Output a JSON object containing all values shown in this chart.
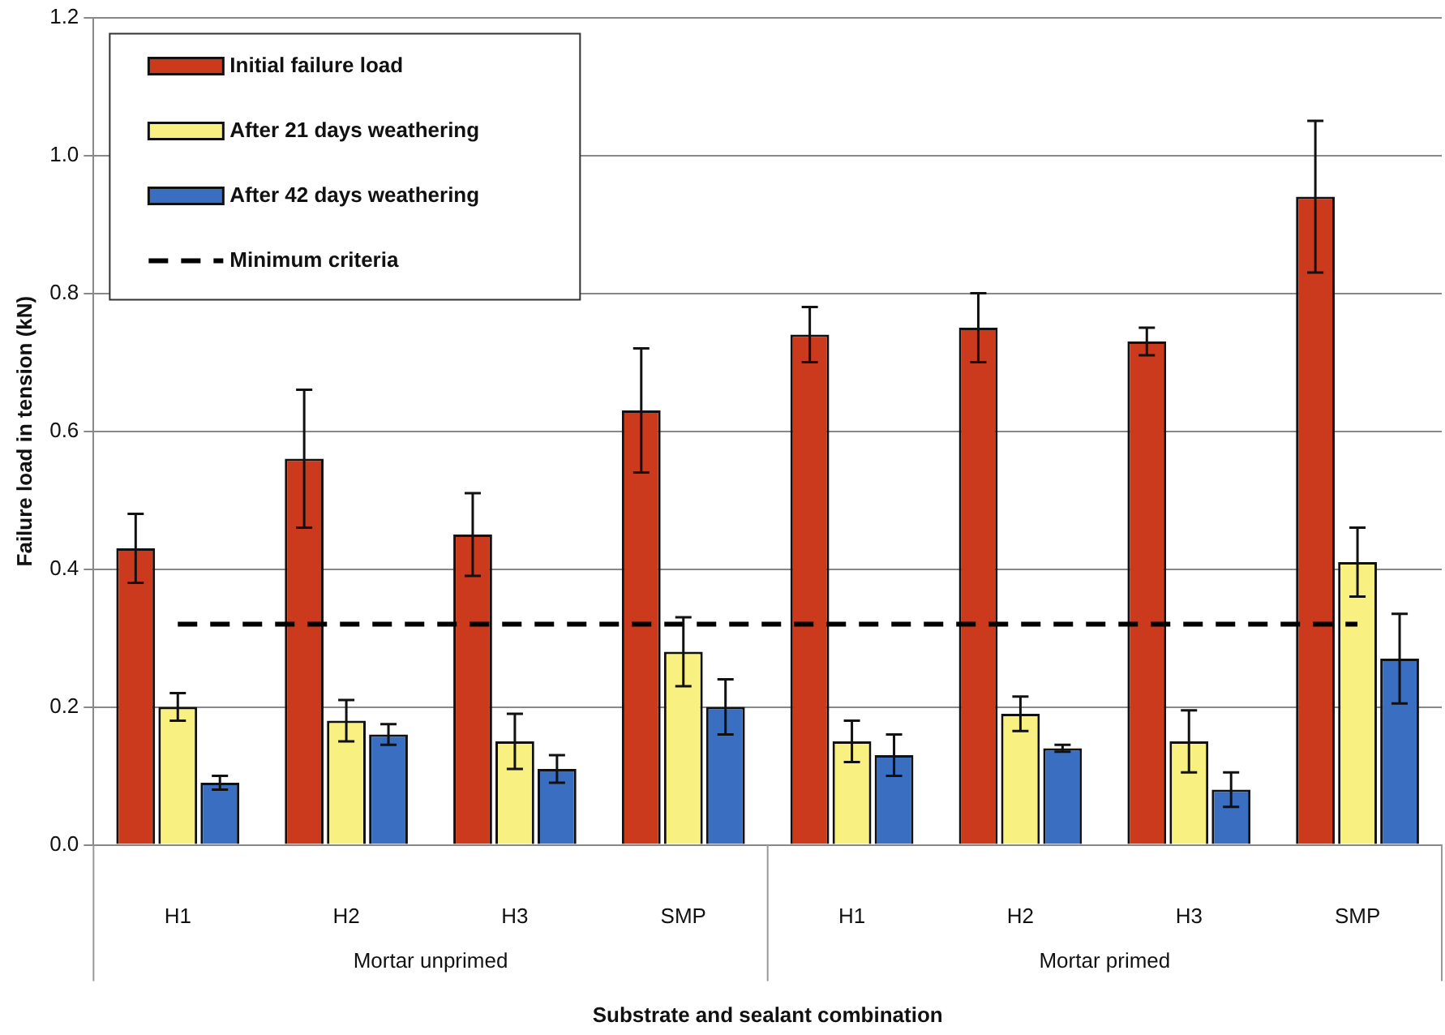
{
  "chart_data": {
    "type": "bar",
    "xlabel": "Substrate and sealant combination",
    "ylabel": "Failure load in tension (kN)",
    "categories": [
      "H1",
      "H2",
      "H3",
      "SMP",
      "H1",
      "H2",
      "H3",
      "SMP"
    ],
    "annotations": [
      "Mortar unprimed",
      "Mortar primed"
    ],
    "series": [
      {
        "name": "Initial failure load",
        "color": "#cc3a1e",
        "values": [
          0.43,
          0.56,
          0.45,
          0.63,
          0.74,
          0.75,
          0.73,
          0.94
        ],
        "errors": [
          0.05,
          0.1,
          0.06,
          0.09,
          0.04,
          0.05,
          0.02,
          0.11
        ]
      },
      {
        "name": "After 21 days weathering",
        "color": "#f8f080",
        "values": [
          0.2,
          0.18,
          0.15,
          0.28,
          0.15,
          0.19,
          0.15,
          0.41
        ],
        "errors": [
          0.02,
          0.03,
          0.04,
          0.05,
          0.03,
          0.025,
          0.045,
          0.05
        ]
      },
      {
        "name": "After 42 days weathering",
        "color": "#3a6ec0",
        "values": [
          0.09,
          0.16,
          0.11,
          0.2,
          0.13,
          0.14,
          0.08,
          0.27
        ],
        "errors": [
          0.01,
          0.015,
          0.02,
          0.04,
          0.03,
          0.005,
          0.025,
          0.065
        ]
      },
      {
        "name": "Minimum criteria",
        "type": "line",
        "color": "#000000",
        "line_style": "dashed",
        "marker": "none",
        "values": [
          0.32,
          0.32,
          0.32,
          0.32,
          0.32,
          0.32,
          0.32,
          0.32
        ]
      }
    ],
    "ylim": [
      0,
      1.2
    ],
    "yticks": [
      {
        "value": 0,
        "label": "0.0"
      },
      {
        "value": 0.2,
        "label": "0.2"
      },
      {
        "value": 0.4,
        "label": "0.4"
      },
      {
        "value": 0.6,
        "label": "0.6"
      },
      {
        "value": 0.8,
        "label": "0.8"
      },
      {
        "value": 1.0,
        "label": "1.0"
      },
      {
        "value": 1.2,
        "label": "1.2"
      }
    ],
    "grid": "y",
    "legend": "top left"
  }
}
